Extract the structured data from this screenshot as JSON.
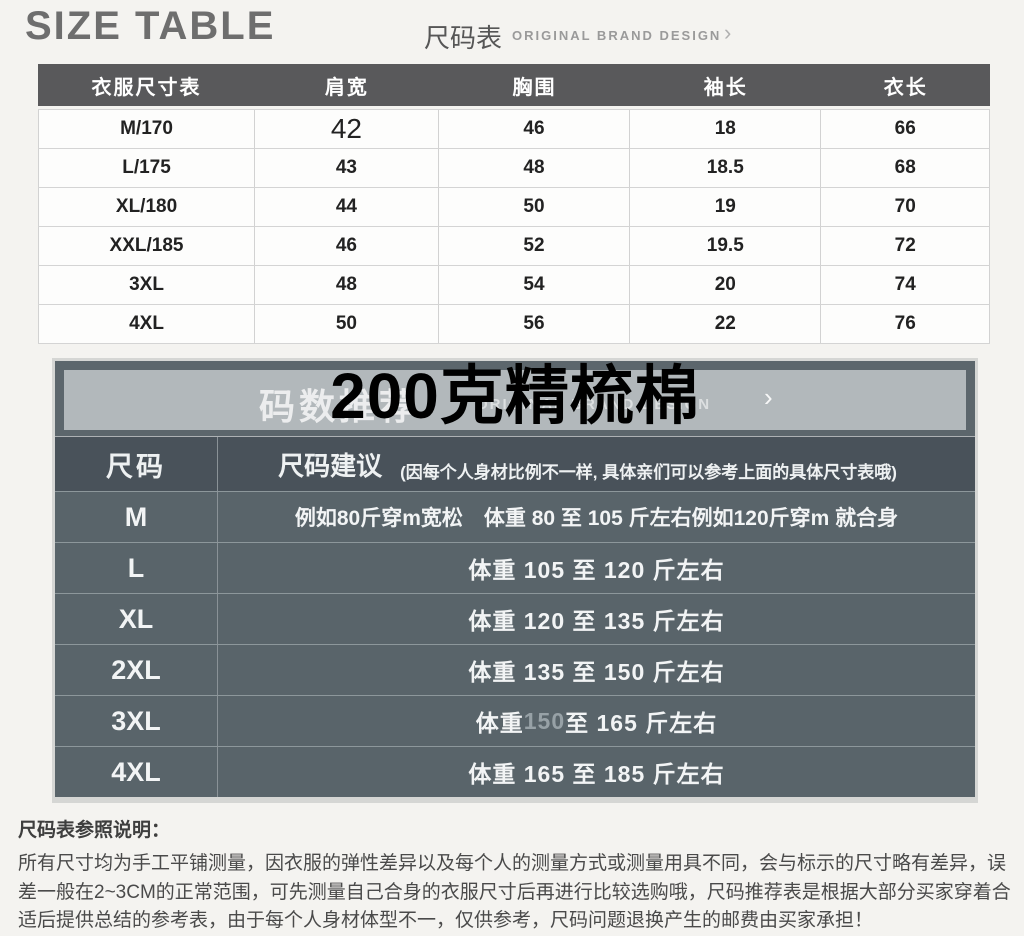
{
  "header": {
    "title": "SIZE TABLE",
    "subtitle": "尺码表",
    "tagline": "ORIGINAL BRAND DESIGN",
    "arrow": "›"
  },
  "size_table": {
    "columns": [
      "衣服尺寸表",
      "肩宽",
      "胸围",
      "袖长",
      "衣长"
    ],
    "rows": [
      {
        "cells": [
          "M/170",
          "42",
          "46",
          "18",
          "66"
        ]
      },
      {
        "cells": [
          "L/175",
          "43",
          "48",
          "18.5",
          "68"
        ]
      },
      {
        "cells": [
          "XL/180",
          "44",
          "50",
          "19",
          "70"
        ]
      },
      {
        "cells": [
          "XXL/185",
          "46",
          "52",
          "19.5",
          "72"
        ]
      },
      {
        "cells": [
          "3XL",
          "48",
          "54",
          "20",
          "74"
        ]
      },
      {
        "cells": [
          "4XL",
          "50",
          "56",
          "22",
          "76"
        ]
      }
    ]
  },
  "weight_table": {
    "overlay_title": "200克精梳棉",
    "banner": {
      "watermark_cn": "码数推荐",
      "watermark_en": "ORIGINAL BRAND DESIGN",
      "arrow": "›"
    },
    "header": {
      "size_label": "尺码",
      "advice_label": "尺码建议",
      "advice_note": "(因每个人身材比例不一样, 具体亲们可以参考上面的具体尺寸表哦)"
    },
    "rows": [
      {
        "label": "M",
        "t1": "例如80斤穿m宽松　体重 80 至 105 斤左右例如120斤穿m 就合身",
        "dim": "",
        "t2": ""
      },
      {
        "label": "L",
        "t1": "体重 105 至 120 斤左右",
        "dim": "",
        "t2": ""
      },
      {
        "label": "XL",
        "t1": "体重 120 至 135 斤左右",
        "dim": "",
        "t2": ""
      },
      {
        "label": "2XL",
        "t1": "体重 135 至 150 斤左右",
        "dim": "",
        "t2": ""
      },
      {
        "label": "3XL",
        "t1": "体重 ",
        "dim": "150",
        "t2": " 至 165 斤左右"
      },
      {
        "label": "4XL",
        "t1": "体重 165 至 185 斤左右",
        "dim": "",
        "t2": ""
      }
    ]
  },
  "footer_note": {
    "title": "尺码表参照说明：",
    "body": "所有尺寸均为手工平铺测量，因衣服的弹性差异以及每个人的测量方式或测量用具不同，会与标示的尺寸略有差异，误差一般在2~3CM的正常范围，可先测量自己合身的衣服尺寸后再进行比较选购哦，尺码推荐表是根据大部分买家穿着合适后提供总结的参考表，由于每个人身材体型不一，仅供参考，尺码问题退换产生的邮费由买家承担！"
  },
  "colors": {
    "page_bg": "#f4f3f0",
    "table1_header_bg": "#59595b",
    "table2_bg": "#5c666c",
    "table2_header_bg": "#49525a",
    "banner_bg": "#b2b8bb",
    "overlay_text": "#000000",
    "light_text": "#ffffff"
  }
}
